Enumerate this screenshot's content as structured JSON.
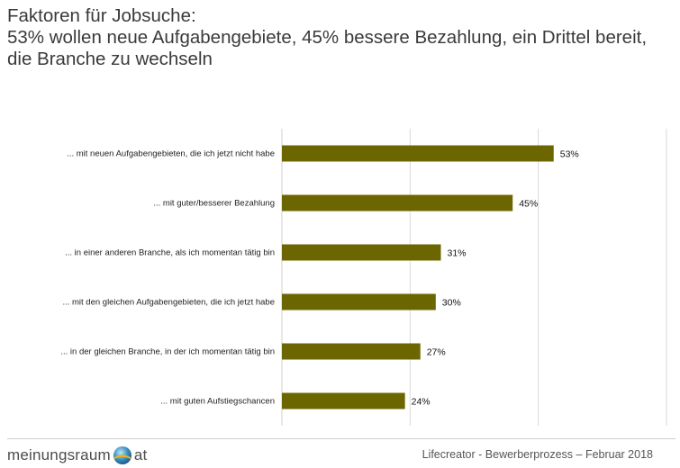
{
  "header": {
    "title_line1": "Faktoren für Jobsuche:",
    "title_line2": "53% wollen neue Aufgabengebiete, 45% bessere Bezahlung, ein Drittel bereit,",
    "title_line3": "die Branche zu wechseln"
  },
  "chart_data": {
    "type": "bar",
    "orientation": "horizontal",
    "categories": [
      "... mit neuen Aufgabengebieten, die ich jetzt nicht habe",
      "... mit guter/besserer Bezahlung",
      "... in einer anderen Branche, als ich momentan tätig bin",
      "... mit den gleichen Aufgabengebieten, die ich jetzt habe",
      "... in der gleichen Branche, in der ich momentan tätig bin",
      "... mit guten Aufstiegschancen"
    ],
    "values": [
      53,
      45,
      31,
      30,
      27,
      24
    ],
    "value_labels": [
      "53%",
      "45%",
      "31%",
      "30%",
      "27%",
      "24%"
    ],
    "xlim": [
      0,
      75
    ],
    "grid": true,
    "bar_color": "#6b6600"
  },
  "footer": {
    "logo_left": "meinungsraum",
    "logo_right": "at",
    "source": "Lifecreator - Bewerberprozess – Februar 2018"
  }
}
